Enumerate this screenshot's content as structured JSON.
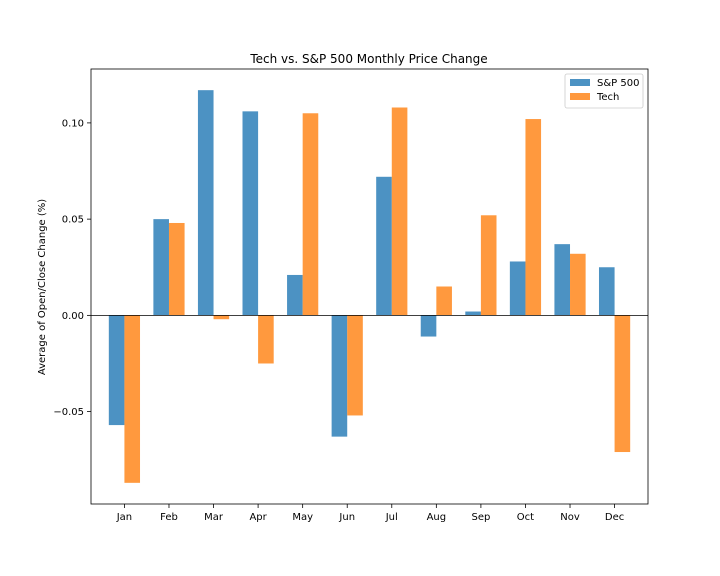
{
  "chart_data": {
    "type": "bar",
    "title": "Tech vs. S&P 500 Monthly Price Change",
    "xlabel": "",
    "ylabel": "Average of Open/Close Change (%)",
    "categories": [
      "Jan",
      "Feb",
      "Mar",
      "Apr",
      "May",
      "Jun",
      "Jul",
      "Aug",
      "Sep",
      "Oct",
      "Nov",
      "Dec"
    ],
    "series": [
      {
        "name": "S&P 500",
        "color": "#1f77b4",
        "values": [
          -0.057,
          0.05,
          0.117,
          0.106,
          0.021,
          -0.063,
          0.072,
          -0.011,
          0.002,
          0.028,
          0.037,
          0.025
        ]
      },
      {
        "name": "Tech",
        "color": "#ff7f0e",
        "values": [
          -0.087,
          0.048,
          -0.002,
          -0.025,
          0.105,
          -0.052,
          0.108,
          0.015,
          0.052,
          0.102,
          0.032,
          -0.071
        ]
      }
    ],
    "ylim": [
      -0.098,
      0.128
    ],
    "yticks": [
      -0.05,
      0.0,
      0.05,
      0.1
    ],
    "ytick_labels": [
      "−0.05",
      "0.00",
      "0.05",
      "0.10"
    ],
    "grid": false,
    "zero_line": true,
    "legend_position": "top-right",
    "bar_opacity": 0.8
  }
}
